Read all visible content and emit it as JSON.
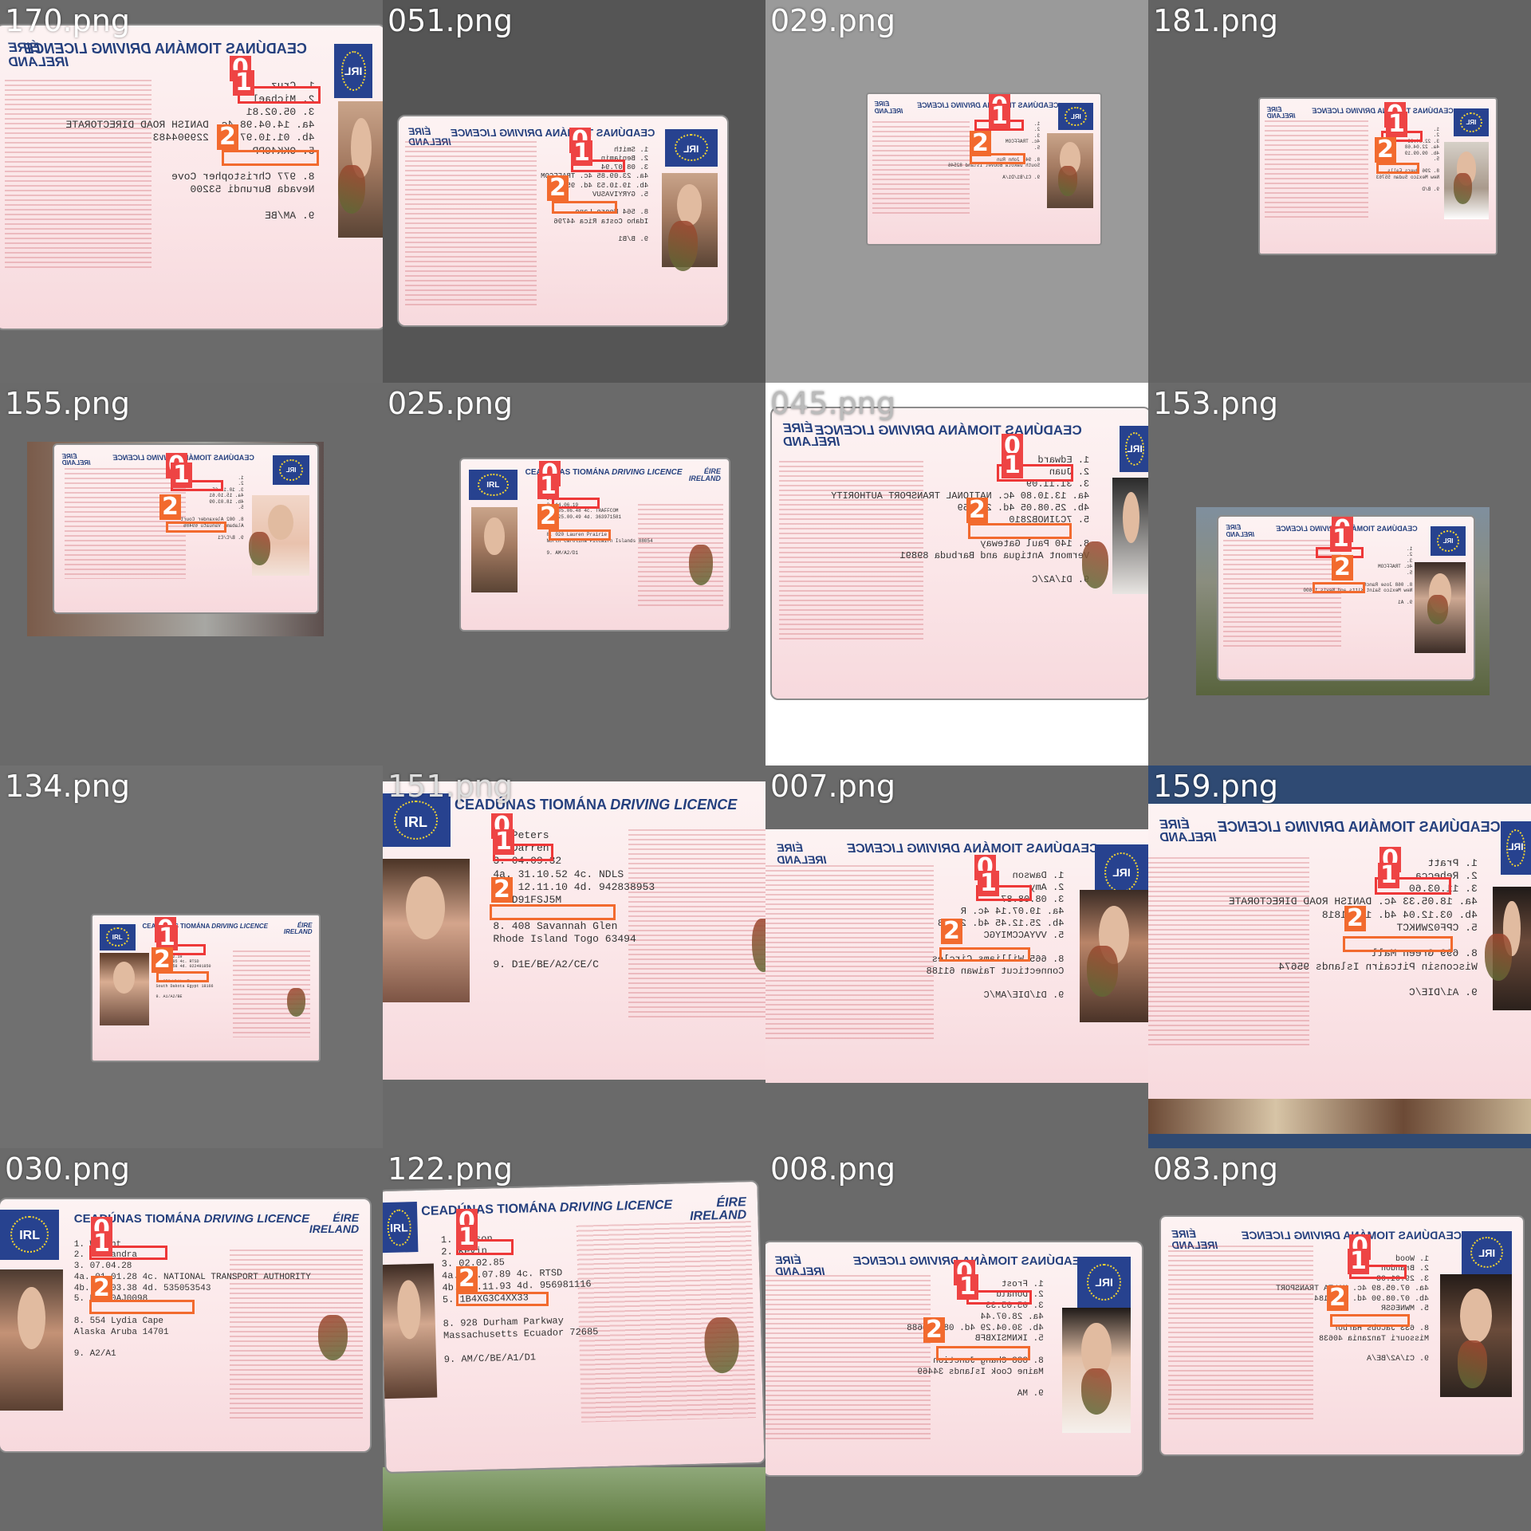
{
  "tiles": [
    {
      "file": "170.png",
      "bg": "#6b6b6b"
    },
    {
      "file": "051.png",
      "bg": "#555555"
    },
    {
      "file": "029.png",
      "bg": "#9a9a9a"
    },
    {
      "file": "181.png",
      "bg": "#636363"
    },
    {
      "file": "155.png",
      "bg": "#6a6a6a"
    },
    {
      "file": "025.png",
      "bg": "#6a6a6a"
    },
    {
      "file": "045.png",
      "bg": "#ffffff"
    },
    {
      "file": "153.png",
      "bg": "#6a6a6a"
    },
    {
      "file": "134.png",
      "bg": "#707070"
    },
    {
      "file": "151.png",
      "bg": "#6a6a6a"
    },
    {
      "file": "007.png",
      "bg": "#6a6a6a"
    },
    {
      "file": "159.png",
      "bg": "#2f4a73"
    },
    {
      "file": "030.png",
      "bg": "#6a6a6a"
    },
    {
      "file": "122.png",
      "bg": "#6a6a6a"
    },
    {
      "file": "008.png",
      "bg": "#6a6a6a"
    },
    {
      "file": "083.png",
      "bg": "#6a6a6a"
    }
  ],
  "card_text": {
    "header_a": "CEADÚNAS TIOMÁNA",
    "header_b": "DRIVING LICENCE",
    "eire": "ÉIRE",
    "ireland": "IRELAND",
    "flag_code": "IRL"
  },
  "tags": {
    "one": "1",
    "two": "2",
    "zero": "0"
  },
  "cards": {
    "t151": {
      "l1": "1. Peters",
      "l2": "2. Darren",
      "l3": "3. 04.09.32",
      "l4": "4a. 31.10.52 4c. NDLS",
      "l5": "4b. 12.11.10 4d. 942838953",
      "l6": "5. D91FSJ5M",
      "l7": "8. 408 Savannah Glen",
      "l8": "Rhode Island Togo 63494",
      "l9": "9. D1E/BE/A2/CE/C"
    },
    "t030": {
      "l1": "1. Wright",
      "l2": "2. Alexandra",
      "l3": "3. 07.04.28",
      "l4": "4a. 01.01.28 4c. NATIONAL TRANSPORT AUTHORITY",
      "l5": "4b. 08.03.38 4d. 535053543",
      "l6": "5. P11W0AJ0098",
      "l7": "8. 554 Lydia Cape",
      "l8": "Alaska Aruba 14701",
      "l9": "9. A2/A1"
    },
    "t122": {
      "l1": "1. Gibson",
      "l2": "2. Kevin",
      "l3": "3. 02.02.85",
      "l4": "4a. 27.07.89 4c. RTSD",
      "l5": "4b. 07.11.93 4d. 956981116",
      "l6": "5. 1B4XG3C4XX33",
      "l7": "8. 928 Durham Parkway",
      "l8": "Massachusetts Ecuador 72685",
      "l9": "9. AM/C/BE/A1/D1"
    },
    "t025": {
      "l1": "1. ",
      "l2": "2. ",
      "l3": "3. 14.06.19",
      "l4": "4a. 05.06.48 4c. TRAFFCOM",
      "l5": "4b. 25.00.49 4d. 363971581",
      "l6": "5. ",
      "l7": "8. 020 Lauren Prairie",
      "l8": "North Carolina Pitcairn Islands 88054",
      "l9": "9. AM/A2/D1"
    },
    "t134": {
      "l1": "1. ",
      "l2": "2. ",
      "l3": "3. 03.02.19",
      "l4": "4a. 11.05 4c. RTSD",
      "l5": "4b. 25.58 4d. 022491850",
      "l6": "5. ",
      "l7": "8. 350 White Trace",
      "l8": "South Dakota Egypt 18166",
      "l9": "9. A1/A2/BE"
    },
    "t170": {
      "l1": "1. Cruz",
      "l2": "2. Michael",
      "l3": "3. 05.02.81",
      "l4": "4a. 14.04.98 4c. DANISH ROAD DIRECTORATE",
      "l5": "4b. 01.10.97 4d. 229904483",
      "l6": "5. OKK40PP",
      "l7": "8. 977 Christopher Cove",
      "l8": "Nevada Burundi 53200",
      "l9": "9. AM/BE"
    },
    "t045": {
      "l1": "1. Edward",
      "l2": "2. Juan",
      "l3": "3. 31.11.09",
      "l4": "4a. 13.10.80 4c. NATIONAL TRANSPORT AUTHORITY",
      "l5": "4b. 25.08.05 4d. 295959",
      "l6": "5. 7CJINOB2810",
      "l7": "8. 140 Paul Gateway",
      "l8": "Vermont Antigua and Barbuda 89891",
      "l9": "9. D1/A2/C"
    },
    "t007": {
      "l1": "1. Dawson",
      "l2": "2. Amy",
      "l3": "3. 08.08.87",
      "l4": "4a. 19.07.14 4c. R",
      "l5": "4b. 25.12.45 4d. 21288",
      "l6": "5. VVYACCMIYGC",
      "l7": "8. 665 Williams Circles",
      "l8": "Connecticut Taiwan 61188",
      "l9": "9. D1/DIE/AM/C"
    },
    "t159": {
      "l1": "1. Pratt",
      "l2": "2. Rebecca",
      "l3": "3. 11.03.60",
      "l4": "4a. 18.05.33 4c. DANISH ROAD DIRECTORATE",
      "l5": "4b. 03.12.04 4d. 11281818",
      "l6": "5. CPF02WNKCT",
      "l7": "8. 699 Green Mall",
      "l8": "Wisconsin Pitcairn Islands 95674",
      "l9": "9. A1/DIE/C"
    },
    "t008": {
      "l1": "1. Frost",
      "l2": "2. Donald",
      "l3": "3. 05.05.33",
      "l4": "4a. 28.07.44",
      "l5": "4b. 30.04.29 4d. 088940688",
      "l6": "5. IKNMSIXBFB",
      "l7": "8. 888 Chang Junction",
      "l8": "Maine Cook Islands 34469",
      "l9": "9. MA"
    },
    "t083": {
      "l1": "1. Wood",
      "l2": "2. Brandon",
      "l3": "3. 29.01.03",
      "l4": "4a. 07.05.89 4c. MALTA TRANSPORT",
      "l5": "4b. 07.08.90 4d. 1925184",
      "l6": "5. MWNEGSR",
      "l7": "8. 633 Jacobs Harbor",
      "l8": "Missouri Tanzania 40638",
      "l9": "9. C1/A2/BE/A"
    },
    "t051": {
      "l1": "1. Smith",
      "l2": "2. Benjamin",
      "l3": "3. 08.07.94",
      "l4": "4a. 23.09.85 4c. TRAFFCOM",
      "l5": "4b. 19.10.53 4d. 950292",
      "l6": "5. GYRYIVASUV",
      "l7": "8. 564 Moore Lane",
      "l8": "Idaho Costa Rica 44796",
      "l9": "9. B/B1"
    },
    "t029": {
      "l1": "1. ",
      "l2": "2. ",
      "l3": "3. ",
      "l4": "4c. TRAFFCOM",
      "l5": "",
      "l6": "5. ",
      "l7": "8. 947 John Run",
      "l8": "South Dakota Bouvet Island 82546",
      "l9": "9. C1/B1/D1/A"
    },
    "t181": {
      "l1": "1. ",
      "l2": "2. ",
      "l3": "3. 22.04.66",
      "l4": "4a. 22.04.68",
      "l5": "4b. 09.09.19",
      "l6": "5. ",
      "l7": "8. 296 Myers Falls",
      "l8": "New Mexico Sudan 55763",
      "l9": "9. B/D"
    },
    "t155": {
      "l1": "1. ",
      "l2": "2. ",
      "l3": "3. 10.10.65",
      "l4": "4a. 15.10.61",
      "l5": "4b. 18.03.09",
      "l6": "5. ",
      "l7": "8. 002 Alexander Court",
      "l8": "Alabama Vanuatu 69486",
      "l9": "9. B/C/C1"
    },
    "t153": {
      "l1": "1. ",
      "l2": "2. ",
      "l3": "3. ",
      "l4": "4c. TRAFFCOM",
      "l5": "",
      "l6": "5. ",
      "l7": "8. 068 Jose Ranch",
      "l8": "New Mexico Saint Kitts and Nevis 14600",
      "l9": "9. A1"
    }
  }
}
